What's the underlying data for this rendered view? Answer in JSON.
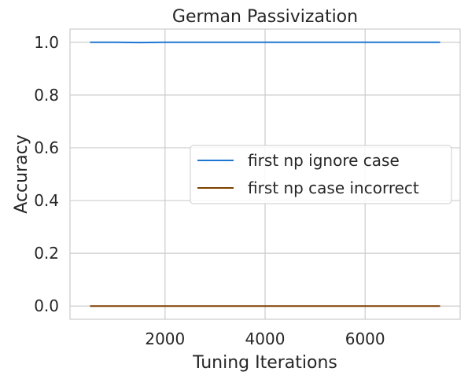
{
  "chart_data": {
    "type": "line",
    "title": "German Passivization",
    "xlabel": "Tuning Iterations",
    "ylabel": "Accuracy",
    "xlim": [
      100,
      7900
    ],
    "ylim": [
      -0.05,
      1.05
    ],
    "xticks": [
      2000,
      4000,
      6000
    ],
    "xtick_labels": [
      "2000",
      "4000",
      "6000"
    ],
    "yticks": [
      0.0,
      0.2,
      0.4,
      0.6,
      0.8,
      1.0
    ],
    "ytick_labels": [
      "0.0",
      "0.2",
      "0.4",
      "0.6",
      "0.8",
      "1.0"
    ],
    "grid": true,
    "legend_position": "center-right",
    "series": [
      {
        "name": "first np ignore case",
        "color": "#1f77d4",
        "x": [
          500,
          1000,
          1500,
          2000,
          2500,
          3000,
          3500,
          4000,
          4500,
          5000,
          5500,
          6000,
          6500,
          7000,
          7500
        ],
        "y": [
          1.0,
          1.0,
          0.999,
          1.0,
          1.0,
          1.0,
          1.0,
          1.0,
          1.0,
          1.0,
          1.0,
          1.0,
          1.0,
          1.0,
          1.0
        ]
      },
      {
        "name": "first np case incorrect",
        "color": "#7f3f00",
        "x": [
          500,
          1000,
          1500,
          2000,
          2500,
          3000,
          3500,
          4000,
          4500,
          5000,
          5500,
          6000,
          6500,
          7000,
          7500
        ],
        "y": [
          0.0,
          0.0,
          0.0,
          0.0,
          0.0,
          0.0,
          0.0,
          0.0,
          0.0,
          0.0,
          0.0,
          0.0,
          0.0,
          0.0,
          0.0
        ]
      }
    ]
  }
}
